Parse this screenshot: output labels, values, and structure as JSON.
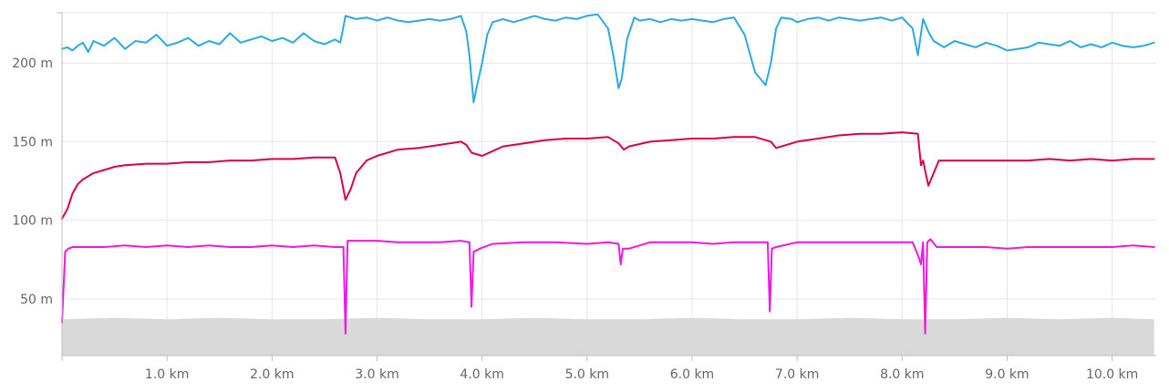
{
  "chart_data": {
    "type": "line",
    "title": "",
    "xlabel": "",
    "ylabel": "",
    "xlim": [
      0,
      10.42
    ],
    "ylim": [
      14,
      232
    ],
    "grid": true,
    "legend": "none",
    "x_ticks": [
      {
        "value": 1,
        "label": "1.0 km"
      },
      {
        "value": 2,
        "label": "2.0 km"
      },
      {
        "value": 3,
        "label": "3.0 km"
      },
      {
        "value": 4,
        "label": "4.0 km"
      },
      {
        "value": 5,
        "label": "5.0 km"
      },
      {
        "value": 6,
        "label": "6.0 km"
      },
      {
        "value": 7,
        "label": "7.0 km"
      },
      {
        "value": 8,
        "label": "8.0 km"
      },
      {
        "value": 9,
        "label": "9.0 km"
      },
      {
        "value": 10,
        "label": "10.0 km"
      }
    ],
    "y_ticks": [
      {
        "value": 50,
        "label": "50 m"
      },
      {
        "value": 100,
        "label": "100 m"
      },
      {
        "value": 150,
        "label": "150 m"
      },
      {
        "value": 200,
        "label": "200 m"
      }
    ],
    "series": [
      {
        "color": "#29aae1",
        "x": [
          0,
          0.05,
          0.1,
          0.15,
          0.2,
          0.25,
          0.3,
          0.4,
          0.5,
          0.6,
          0.7,
          0.8,
          0.9,
          1.0,
          1.1,
          1.2,
          1.3,
          1.4,
          1.5,
          1.6,
          1.7,
          1.8,
          1.9,
          2.0,
          2.1,
          2.2,
          2.3,
          2.4,
          2.5,
          2.6,
          2.65,
          2.7,
          2.8,
          2.9,
          3.0,
          3.1,
          3.2,
          3.3,
          3.4,
          3.5,
          3.6,
          3.7,
          3.8,
          3.85,
          3.88,
          3.92,
          3.95,
          4.0,
          4.05,
          4.1,
          4.2,
          4.3,
          4.4,
          4.5,
          4.6,
          4.7,
          4.8,
          4.9,
          5.0,
          5.1,
          5.2,
          5.25,
          5.3,
          5.33,
          5.38,
          5.45,
          5.5,
          5.6,
          5.7,
          5.8,
          5.9,
          6.0,
          6.1,
          6.2,
          6.3,
          6.4,
          6.5,
          6.6,
          6.7,
          6.75,
          6.8,
          6.85,
          6.95,
          7.0,
          7.1,
          7.2,
          7.3,
          7.4,
          7.5,
          7.6,
          7.7,
          7.8,
          7.9,
          8.0,
          8.1,
          8.15,
          8.2,
          8.25,
          8.3,
          8.4,
          8.5,
          8.6,
          8.7,
          8.8,
          8.9,
          9.0,
          9.1,
          9.2,
          9.3,
          9.4,
          9.5,
          9.6,
          9.7,
          9.8,
          9.9,
          10.0,
          10.1,
          10.2,
          10.3,
          10.4
        ],
        "values": [
          209,
          210,
          208,
          211,
          213,
          207,
          214,
          211,
          216,
          209,
          214,
          213,
          218,
          211,
          213,
          216,
          211,
          214,
          212,
          219,
          213,
          215,
          217,
          214,
          216,
          213,
          219,
          214,
          212,
          215,
          213,
          230,
          228,
          229,
          227,
          229,
          227,
          226,
          227,
          228,
          227,
          228,
          230,
          220,
          205,
          175,
          185,
          200,
          218,
          226,
          228,
          226,
          228,
          230,
          228,
          227,
          229,
          228,
          230,
          231,
          222,
          205,
          184,
          190,
          215,
          229,
          227,
          228,
          226,
          228,
          227,
          228,
          227,
          226,
          228,
          229,
          218,
          194,
          186,
          200,
          222,
          229,
          228,
          226,
          228,
          229,
          227,
          229,
          228,
          227,
          228,
          229,
          227,
          229,
          222,
          205,
          228,
          220,
          214,
          210,
          214,
          212,
          210,
          213,
          211,
          208,
          209,
          210,
          213,
          212,
          211,
          214,
          210,
          212,
          210,
          213,
          211,
          210,
          211,
          213
        ]
      },
      {
        "color": "#d6004f",
        "x": [
          0,
          0.05,
          0.1,
          0.15,
          0.2,
          0.3,
          0.4,
          0.5,
          0.6,
          0.8,
          1.0,
          1.2,
          1.4,
          1.6,
          1.8,
          2.0,
          2.2,
          2.4,
          2.6,
          2.65,
          2.7,
          2.75,
          2.8,
          2.9,
          3.0,
          3.2,
          3.4,
          3.6,
          3.8,
          3.85,
          3.9,
          4.0,
          4.1,
          4.2,
          4.4,
          4.6,
          4.8,
          5.0,
          5.2,
          5.3,
          5.35,
          5.4,
          5.6,
          5.8,
          6.0,
          6.2,
          6.4,
          6.6,
          6.75,
          6.8,
          6.9,
          7.0,
          7.2,
          7.4,
          7.6,
          7.8,
          8.0,
          8.15,
          8.18,
          8.2,
          8.25,
          8.3,
          8.35,
          8.4,
          8.6,
          8.8,
          9.0,
          9.2,
          9.4,
          9.6,
          9.8,
          10.0,
          10.2,
          10.4
        ],
        "values": [
          101,
          107,
          117,
          123,
          126,
          130,
          132,
          134,
          135,
          136,
          136,
          137,
          137,
          138,
          138,
          139,
          139,
          140,
          140,
          130,
          113,
          120,
          130,
          138,
          141,
          145,
          146,
          148,
          150,
          148,
          143,
          141,
          144,
          147,
          149,
          151,
          152,
          152,
          153,
          149,
          145,
          147,
          150,
          151,
          152,
          152,
          153,
          153,
          150,
          146,
          148,
          150,
          152,
          154,
          155,
          155,
          156,
          155,
          135,
          138,
          122,
          130,
          138,
          138,
          138,
          138,
          138,
          138,
          139,
          138,
          139,
          138,
          139,
          139
        ]
      },
      {
        "color": "#f016e6",
        "x": [
          0,
          0.03,
          0.06,
          0.1,
          0.2,
          0.4,
          0.6,
          0.8,
          1.0,
          1.2,
          1.4,
          1.6,
          1.8,
          2.0,
          2.2,
          2.4,
          2.6,
          2.68,
          2.7,
          2.72,
          2.8,
          3.0,
          3.2,
          3.4,
          3.6,
          3.8,
          3.88,
          3.9,
          3.92,
          3.98,
          4.1,
          4.4,
          4.7,
          5.0,
          5.2,
          5.3,
          5.32,
          5.34,
          5.4,
          5.6,
          5.8,
          6.0,
          6.2,
          6.4,
          6.6,
          6.72,
          6.74,
          6.76,
          6.8,
          7.0,
          7.2,
          7.4,
          7.6,
          7.8,
          8.0,
          8.1,
          8.15,
          8.18,
          8.2,
          8.22,
          8.24,
          8.27,
          8.33,
          8.4,
          8.6,
          8.8,
          9.0,
          9.2,
          9.4,
          9.6,
          9.8,
          10.0,
          10.2,
          10.4
        ],
        "values": [
          35,
          80,
          82,
          83,
          83,
          83,
          84,
          83,
          84,
          83,
          84,
          83,
          83,
          84,
          83,
          84,
          83,
          83,
          28,
          87,
          87,
          87,
          86,
          86,
          86,
          87,
          86,
          45,
          80,
          82,
          85,
          86,
          86,
          85,
          86,
          85,
          72,
          82,
          82,
          86,
          86,
          86,
          85,
          86,
          86,
          86,
          42,
          82,
          83,
          86,
          86,
          86,
          86,
          86,
          86,
          86,
          78,
          72,
          86,
          28,
          86,
          88,
          83,
          83,
          83,
          83,
          82,
          83,
          83,
          83,
          83,
          83,
          84,
          83
        ]
      },
      {
        "color": "#d9d9d9",
        "type": "area",
        "x": [
          0,
          0.5,
          1.0,
          1.5,
          2.0,
          2.5,
          3.0,
          3.5,
          4.0,
          4.5,
          5.0,
          5.5,
          6.0,
          6.5,
          7.0,
          7.5,
          8.0,
          8.5,
          9.0,
          9.5,
          10.0,
          10.4
        ],
        "values": [
          37,
          38,
          37,
          38,
          37,
          37,
          38,
          37,
          37,
          38,
          37,
          37,
          38,
          37,
          37,
          38,
          37,
          37,
          38,
          37,
          38,
          37
        ]
      }
    ]
  }
}
